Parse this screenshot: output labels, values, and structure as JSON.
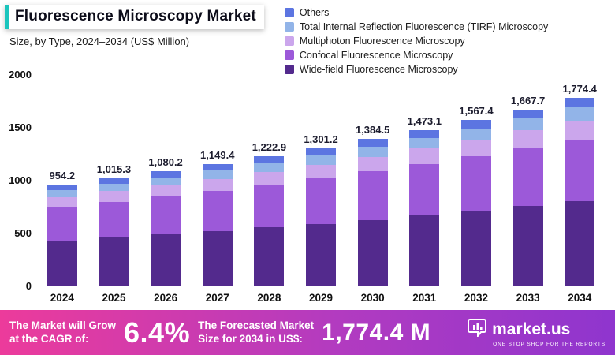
{
  "header": {
    "title": "Fluorescence Microscopy Market",
    "subtitle": "Size, by Type, 2024–2034 (US$ Million)"
  },
  "chart_data": {
    "type": "bar",
    "stacked": true,
    "title": "Fluorescence Microscopy Market",
    "xlabel": "",
    "ylabel": "US$ Million",
    "ylim": [
      0,
      2000
    ],
    "yticks": [
      0,
      500,
      1000,
      1500,
      2000
    ],
    "legend_position": "top-right",
    "grid": false,
    "categories": [
      "2024",
      "2025",
      "2026",
      "2027",
      "2028",
      "2029",
      "2030",
      "2031",
      "2032",
      "2033",
      "2034"
    ],
    "totals": [
      "954.2",
      "1,015.3",
      "1,080.2",
      "1,149.4",
      "1,222.9",
      "1,301.2",
      "1,384.5",
      "1,473.1",
      "1,567.4",
      "1,667.7",
      "1,774.4"
    ],
    "total_values": [
      954.2,
      1015.3,
      1080.2,
      1149.4,
      1222.9,
      1301.2,
      1384.5,
      1473.1,
      1567.4,
      1667.7,
      1774.4
    ],
    "series": [
      {
        "name": "Wide-field Fluorescence Microscopy",
        "color": "#532A8D",
        "values": [
          429.4,
          456.9,
          486.1,
          517.2,
          550.3,
          585.5,
          623.0,
          662.9,
          705.3,
          750.5,
          798.5
        ]
      },
      {
        "name": "Confocal Fluorescence Microscopy",
        "color": "#9C59D9",
        "values": [
          314.9,
          335.0,
          356.5,
          379.3,
          403.6,
          429.4,
          456.9,
          486.1,
          517.2,
          550.3,
          585.6
        ]
      },
      {
        "name": "Multiphoton Fluorescence Microscopy",
        "color": "#CBA6EC",
        "values": [
          95.4,
          101.5,
          108.0,
          114.9,
          122.3,
          130.1,
          138.5,
          147.3,
          156.7,
          166.8,
          177.4
        ]
      },
      {
        "name": "Total Internal Reflection Fluorescence (TIRF) Microscopy",
        "color": "#92B4E8",
        "values": [
          66.8,
          71.1,
          75.6,
          80.5,
          85.6,
          91.1,
          96.9,
          103.1,
          109.7,
          116.7,
          124.2
        ]
      },
      {
        "name": "Others",
        "color": "#5C75E1",
        "values": [
          47.7,
          50.8,
          54.0,
          57.5,
          61.1,
          65.1,
          69.2,
          73.7,
          78.4,
          83.4,
          88.7
        ]
      }
    ]
  },
  "banner": {
    "cagr_label": "The Market will Grow\nat the CAGR of:",
    "cagr_value": "6.4%",
    "forecast_label": "The Forecasted Market\nSize for 2034 in US$:",
    "forecast_value": "1,774.4 M",
    "brand": "market.us",
    "brand_tagline": "ONE STOP SHOP FOR THE REPORTS"
  }
}
